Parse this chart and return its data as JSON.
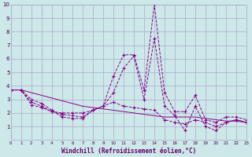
{
  "xlabel": "Windchill (Refroidissement éolien,°C)",
  "background_color": "#cce8e8",
  "grid_color": "#aaaacc",
  "line_color": "#880088",
  "xlim": [
    0,
    23
  ],
  "ylim": [
    0,
    10
  ],
  "xticks": [
    0,
    1,
    2,
    3,
    4,
    5,
    6,
    7,
    8,
    9,
    10,
    11,
    12,
    13,
    14,
    15,
    16,
    17,
    18,
    19,
    20,
    21,
    22,
    23
  ],
  "yticks": [
    1,
    2,
    3,
    4,
    5,
    6,
    7,
    8,
    9,
    10
  ],
  "series": [
    {
      "x": [
        0,
        1,
        2,
        3,
        4,
        5,
        6,
        7,
        8,
        9,
        10,
        11,
        12,
        13,
        14,
        15,
        16,
        17,
        18,
        19,
        20,
        21,
        22,
        23
      ],
      "y": [
        3.7,
        3.7,
        3.0,
        2.7,
        2.2,
        1.7,
        1.6,
        1.6,
        2.2,
        2.5,
        4.7,
        6.3,
        6.3,
        3.7,
        10.0,
        3.5,
        2.1,
        2.1,
        3.3,
        1.5,
        1.3,
        1.7,
        1.7,
        1.5
      ],
      "linestyle": "--",
      "marker": "+"
    },
    {
      "x": [
        0,
        1,
        2,
        3,
        4,
        5,
        6,
        7,
        8,
        9,
        10,
        11,
        12,
        13,
        14,
        15,
        16,
        17,
        18,
        19,
        20,
        21,
        22,
        23
      ],
      "y": [
        3.7,
        3.7,
        2.8,
        2.5,
        2.1,
        1.9,
        1.8,
        1.7,
        2.2,
        2.5,
        3.5,
        5.3,
        6.2,
        3.0,
        7.5,
        2.5,
        1.8,
        0.7,
        2.5,
        1.0,
        0.7,
        1.3,
        1.5,
        1.3
      ],
      "linestyle": "--",
      "marker": "+"
    },
    {
      "x": [
        0,
        1,
        2,
        3,
        4,
        5,
        6,
        7,
        8,
        9,
        10,
        11,
        12,
        13,
        14,
        15,
        16,
        17,
        18,
        19,
        20,
        21,
        22,
        23
      ],
      "y": [
        3.7,
        3.7,
        2.6,
        2.4,
        2.1,
        2.0,
        2.0,
        2.0,
        2.2,
        2.5,
        2.8,
        2.5,
        2.4,
        2.3,
        2.2,
        1.5,
        1.3,
        1.2,
        1.5,
        1.3,
        1.0,
        1.3,
        1.5,
        1.3
      ],
      "linestyle": "--",
      "marker": "+"
    },
    {
      "x": [
        0,
        1,
        2,
        3,
        4,
        5,
        6,
        7,
        8,
        9,
        10,
        11,
        12,
        13,
        14,
        15,
        16,
        17,
        18,
        19,
        20,
        21,
        22,
        23
      ],
      "y": [
        3.7,
        3.7,
        3.5,
        3.3,
        3.1,
        2.9,
        2.7,
        2.5,
        2.4,
        2.3,
        2.2,
        2.1,
        2.0,
        1.9,
        1.8,
        1.7,
        1.7,
        1.7,
        1.7,
        1.6,
        1.5,
        1.4,
        1.4,
        1.3
      ],
      "linestyle": "-",
      "marker": null
    }
  ]
}
